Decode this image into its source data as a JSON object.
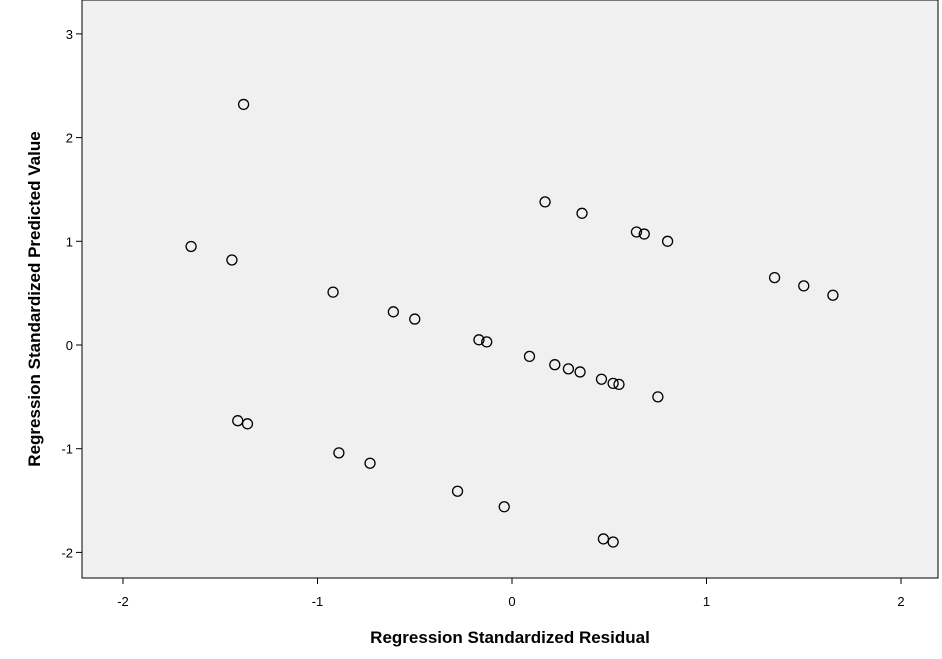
{
  "chart_data": {
    "type": "scatter",
    "title": "",
    "xlabel": "Regression Standardized Residual",
    "ylabel": "Regression Standardized Predicted Value",
    "xlim": [
      -2.2,
      2.2
    ],
    "ylim": [
      -2.3,
      3.3
    ],
    "x_ticks": [
      -2,
      -1,
      0,
      1,
      2
    ],
    "y_ticks": [
      -2,
      -1,
      0,
      1,
      2,
      3
    ],
    "grid": false,
    "marker": "open-circle",
    "colors": {
      "plot_background": "#f0f0f0",
      "marker_stroke": "#000000",
      "axis": "#000000"
    },
    "points": [
      {
        "x": -1.65,
        "y": 0.95
      },
      {
        "x": -1.44,
        "y": 0.82
      },
      {
        "x": -1.38,
        "y": 2.32
      },
      {
        "x": -1.41,
        "y": -0.73
      },
      {
        "x": -1.36,
        "y": -0.76
      },
      {
        "x": -0.92,
        "y": 0.51
      },
      {
        "x": -0.89,
        "y": -1.04
      },
      {
        "x": -0.73,
        "y": -1.14
      },
      {
        "x": -0.61,
        "y": 0.32
      },
      {
        "x": -0.5,
        "y": 0.25
      },
      {
        "x": -0.28,
        "y": -1.41
      },
      {
        "x": -0.17,
        "y": 0.05
      },
      {
        "x": -0.13,
        "y": 0.03
      },
      {
        "x": -0.04,
        "y": -1.56
      },
      {
        "x": 0.09,
        "y": -0.11
      },
      {
        "x": 0.17,
        "y": 1.38
      },
      {
        "x": 0.22,
        "y": -0.19
      },
      {
        "x": 0.29,
        "y": -0.23
      },
      {
        "x": 0.35,
        "y": -0.26
      },
      {
        "x": 0.36,
        "y": 1.27
      },
      {
        "x": 0.46,
        "y": -0.33
      },
      {
        "x": 0.47,
        "y": -1.87
      },
      {
        "x": 0.52,
        "y": -0.37
      },
      {
        "x": 0.52,
        "y": -1.9
      },
      {
        "x": 0.55,
        "y": -0.38
      },
      {
        "x": 0.64,
        "y": 1.09
      },
      {
        "x": 0.68,
        "y": 1.07
      },
      {
        "x": 0.75,
        "y": -0.5
      },
      {
        "x": 0.8,
        "y": 1.0
      },
      {
        "x": 1.35,
        "y": 0.65
      },
      {
        "x": 1.5,
        "y": 0.57
      },
      {
        "x": 1.65,
        "y": 0.48
      }
    ]
  }
}
